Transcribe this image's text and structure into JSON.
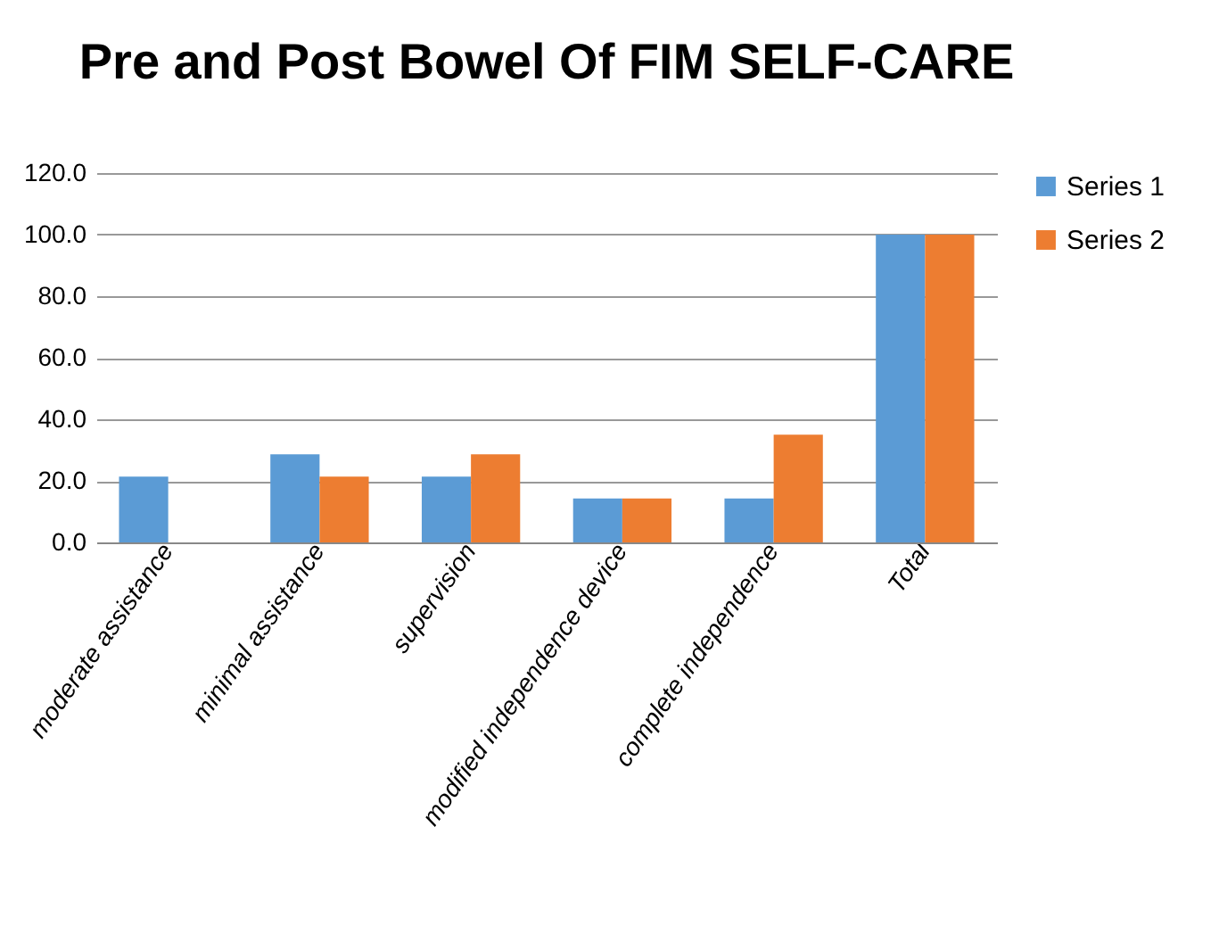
{
  "chart_data": {
    "type": "bar",
    "title": "Pre and Post Bowel Of FIM SELF-CARE",
    "categories": [
      "moderate assistance",
      "minimal assistance",
      "supervision",
      "modified independence device",
      "complete independence",
      "Total"
    ],
    "series": [
      {
        "name": "Series 1",
        "color": "#5b9bd5",
        "values": [
          21.4,
          28.6,
          21.4,
          14.3,
          14.3,
          100
        ]
      },
      {
        "name": "Series 2",
        "color": "#ed7d31",
        "values": [
          0,
          21.4,
          28.6,
          14.3,
          35,
          100
        ]
      }
    ],
    "ylim": [
      0,
      120
    ],
    "yticks": [
      {
        "value": 0,
        "label": "0.0"
      },
      {
        "value": 20,
        "label": "20.0"
      },
      {
        "value": 40,
        "label": "40.0"
      },
      {
        "value": 60,
        "label": "60.0"
      },
      {
        "value": 80,
        "label": "80.0"
      },
      {
        "value": 100,
        "label": "100.0"
      },
      {
        "value": 120,
        "label": "120.0"
      }
    ],
    "grid": "y",
    "legend": "right"
  }
}
